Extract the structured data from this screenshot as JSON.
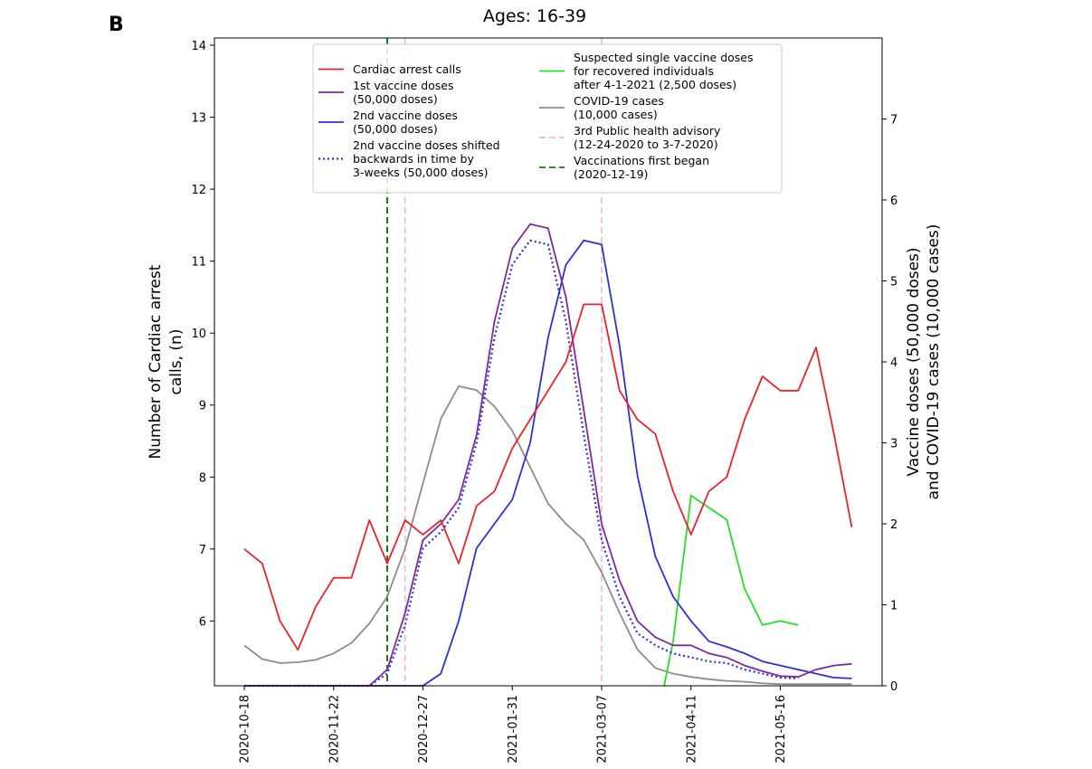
{
  "chart_data": {
    "type": "line",
    "panel_label": "B",
    "title": "Ages: 16-39",
    "ylabel_left": [
      "Number of Cardiac arrest",
      "calls, (n)"
    ],
    "ylabel_right": [
      "Vaccine doses (50,000 doses)",
      "and COVID-19 cases (10,000 cases)"
    ],
    "ylim_left": [
      5.1,
      14.1
    ],
    "ylim_right": [
      0,
      8.0
    ],
    "yticks_left": [
      6,
      7,
      8,
      9,
      10,
      11,
      12,
      13,
      14
    ],
    "yticks_right": [
      0,
      1,
      2,
      3,
      4,
      5,
      6,
      7
    ],
    "x_start": "2020-10-18",
    "x_end": "2021-06-13",
    "xticks": [
      "2020-10-18",
      "2020-11-22",
      "2020-12-27",
      "2021-01-31",
      "2021-03-07",
      "2021-04-11",
      "2021-05-16"
    ],
    "legend_columns": 2,
    "series": [
      {
        "name": "Cardiac arrest calls",
        "axis": "left",
        "color": "#e8242a",
        "style": "solid",
        "legend_lines": [
          "Cardiac arrest calls"
        ],
        "points": [
          [
            0,
            7.0
          ],
          [
            1,
            6.8
          ],
          [
            2,
            6.0
          ],
          [
            3,
            5.6
          ],
          [
            4,
            6.2
          ],
          [
            5,
            6.6
          ],
          [
            6,
            6.6
          ],
          [
            7,
            7.4
          ],
          [
            8,
            6.8
          ],
          [
            9,
            7.4
          ],
          [
            10,
            7.2
          ],
          [
            11,
            7.4
          ],
          [
            12,
            6.8
          ],
          [
            13,
            7.6
          ],
          [
            14,
            7.8
          ],
          [
            15,
            8.4
          ],
          [
            16,
            8.8
          ],
          [
            17,
            9.2
          ],
          [
            18,
            9.6
          ],
          [
            19,
            10.4
          ],
          [
            20,
            10.4
          ],
          [
            21,
            9.2
          ],
          [
            22,
            8.8
          ],
          [
            23,
            8.6
          ],
          [
            24,
            7.8
          ],
          [
            25,
            7.2
          ],
          [
            26,
            7.8
          ],
          [
            27,
            8.0
          ],
          [
            28,
            8.8
          ],
          [
            29,
            9.4
          ],
          [
            30,
            9.2
          ],
          [
            31,
            9.2
          ],
          [
            32,
            9.8
          ],
          [
            33,
            8.6
          ],
          [
            34,
            7.3
          ]
        ]
      },
      {
        "name": "1st vaccine doses (50,000 doses)",
        "axis": "right",
        "color": "#7d2b9a",
        "style": "solid",
        "legend_lines": [
          "1st vaccine doses",
          "(50,000 doses)"
        ],
        "points": [
          [
            0,
            0
          ],
          [
            1,
            0
          ],
          [
            2,
            0
          ],
          [
            3,
            0
          ],
          [
            4,
            0
          ],
          [
            5,
            0
          ],
          [
            6,
            0
          ],
          [
            7,
            0
          ],
          [
            8,
            0.2
          ],
          [
            9,
            0.9
          ],
          [
            10,
            1.8
          ],
          [
            11,
            2.0
          ],
          [
            12,
            2.3
          ],
          [
            13,
            3.1
          ],
          [
            14,
            4.5
          ],
          [
            15,
            5.4
          ],
          [
            16,
            5.7
          ],
          [
            17,
            5.65
          ],
          [
            18,
            4.8
          ],
          [
            19,
            3.4
          ],
          [
            20,
            2.0
          ],
          [
            21,
            1.3
          ],
          [
            22,
            0.8
          ],
          [
            23,
            0.6
          ],
          [
            24,
            0.5
          ],
          [
            25,
            0.5
          ],
          [
            26,
            0.4
          ],
          [
            27,
            0.35
          ],
          [
            28,
            0.25
          ],
          [
            29,
            0.18
          ],
          [
            30,
            0.12
          ],
          [
            31,
            0.11
          ],
          [
            32,
            0.2
          ],
          [
            33,
            0.25
          ],
          [
            34,
            0.27
          ]
        ]
      },
      {
        "name": "2nd vaccine doses (50,000 doses)",
        "axis": "right",
        "color": "#2f2fd6",
        "style": "solid",
        "legend_lines": [
          "2nd vaccine doses",
          "(50,000 doses)"
        ],
        "points": [
          [
            0,
            0
          ],
          [
            1,
            0
          ],
          [
            2,
            0
          ],
          [
            3,
            0
          ],
          [
            4,
            0
          ],
          [
            5,
            0
          ],
          [
            6,
            0
          ],
          [
            7,
            0
          ],
          [
            8,
            0
          ],
          [
            9,
            0
          ],
          [
            10,
            0
          ],
          [
            11,
            0.15
          ],
          [
            12,
            0.8
          ],
          [
            13,
            1.7
          ],
          [
            14,
            2.0
          ],
          [
            15,
            2.3
          ],
          [
            16,
            3.0
          ],
          [
            17,
            4.3
          ],
          [
            18,
            5.2
          ],
          [
            19,
            5.5
          ],
          [
            20,
            5.45
          ],
          [
            21,
            4.2
          ],
          [
            22,
            2.6
          ],
          [
            23,
            1.6
          ],
          [
            24,
            1.1
          ],
          [
            25,
            0.8
          ],
          [
            26,
            0.55
          ],
          [
            27,
            0.48
          ],
          [
            28,
            0.4
          ],
          [
            29,
            0.3
          ],
          [
            30,
            0.25
          ],
          [
            31,
            0.2
          ],
          [
            32,
            0.15
          ],
          [
            33,
            0.1
          ],
          [
            34,
            0.09
          ]
        ]
      },
      {
        "name": "2nd vaccine doses shifted backwards in time by 3-weeks (50,000 doses)",
        "axis": "right",
        "color": "#2f2fd6",
        "style": "dotted",
        "legend_lines": [
          "2nd vaccine doses shifted",
          "backwards in time by",
          "3-weeks (50,000 doses)"
        ],
        "points": [
          [
            0,
            0
          ],
          [
            1,
            0
          ],
          [
            2,
            0
          ],
          [
            3,
            0
          ],
          [
            4,
            0
          ],
          [
            5,
            0
          ],
          [
            6,
            0
          ],
          [
            7,
            0
          ],
          [
            8,
            0.15
          ],
          [
            9,
            0.75
          ],
          [
            10,
            1.7
          ],
          [
            11,
            1.9
          ],
          [
            12,
            2.2
          ],
          [
            13,
            3.0
          ],
          [
            14,
            4.3
          ],
          [
            15,
            5.2
          ],
          [
            16,
            5.5
          ],
          [
            17,
            5.45
          ],
          [
            18,
            4.5
          ],
          [
            19,
            3.1
          ],
          [
            20,
            1.8
          ],
          [
            21,
            1.1
          ],
          [
            22,
            0.65
          ],
          [
            23,
            0.5
          ],
          [
            24,
            0.4
          ],
          [
            25,
            0.35
          ],
          [
            26,
            0.3
          ],
          [
            27,
            0.28
          ],
          [
            28,
            0.2
          ],
          [
            29,
            0.15
          ],
          [
            30,
            0.1
          ],
          [
            31,
            0.09
          ]
        ]
      },
      {
        "name": "Suspected single vaccine doses for recovered individuals after 4-1-2021 (2,500 doses)",
        "axis": "right",
        "color": "#22e022",
        "style": "solid",
        "legend_lines": [
          "Suspected single vaccine doses",
          "for recovered individuals",
          "after 4-1-2021 (2,500 doses)"
        ],
        "points": [
          [
            23.5,
            0
          ],
          [
            24,
            0.55
          ],
          [
            25,
            2.35
          ],
          [
            26,
            2.2
          ],
          [
            27,
            2.05
          ],
          [
            28,
            1.2
          ],
          [
            29,
            0.75
          ],
          [
            30,
            0.8
          ],
          [
            31,
            0.75
          ]
        ]
      },
      {
        "name": "COVID-19 cases (10,000 cases)",
        "axis": "right",
        "color": "#8c8c8c",
        "style": "solid",
        "legend_lines": [
          "COVID-19 cases",
          "(10,000 cases)"
        ],
        "points": [
          [
            0,
            0.5
          ],
          [
            1,
            0.33
          ],
          [
            2,
            0.28
          ],
          [
            3,
            0.29
          ],
          [
            4,
            0.32
          ],
          [
            5,
            0.4
          ],
          [
            6,
            0.53
          ],
          [
            7,
            0.77
          ],
          [
            8,
            1.1
          ],
          [
            9,
            1.7
          ],
          [
            10,
            2.5
          ],
          [
            11,
            3.3
          ],
          [
            12,
            3.7
          ],
          [
            13,
            3.65
          ],
          [
            14,
            3.45
          ],
          [
            15,
            3.15
          ],
          [
            16,
            2.7
          ],
          [
            17,
            2.25
          ],
          [
            18,
            2.0
          ],
          [
            19,
            1.8
          ],
          [
            20,
            1.4
          ],
          [
            21,
            0.9
          ],
          [
            22,
            0.45
          ],
          [
            23,
            0.22
          ],
          [
            24,
            0.15
          ],
          [
            25,
            0.11
          ],
          [
            26,
            0.08
          ],
          [
            27,
            0.06
          ],
          [
            28,
            0.05
          ],
          [
            29,
            0.03
          ],
          [
            30,
            0.02
          ],
          [
            31,
            0.02
          ],
          [
            32,
            0.02
          ],
          [
            33,
            0.02
          ],
          [
            34,
            0.02
          ]
        ]
      }
    ],
    "reference_lines": [
      {
        "name": "3rd Public health advisory (12-24-2020 to 3-7-2020)",
        "color": "#f4b8c4",
        "style": "dashed",
        "x": [
          9.0,
          20.0
        ],
        "legend_lines": [
          "3rd Public health advisory",
          "(12-24-2020 to 3-7-2020)"
        ]
      },
      {
        "name": "Vaccinations first began (2020-12-19)",
        "color": "#1a7a1a",
        "style": "dashed",
        "x": [
          8.0
        ],
        "legend_lines": [
          "Vaccinations first began",
          "(2020-12-19)"
        ]
      }
    ]
  }
}
